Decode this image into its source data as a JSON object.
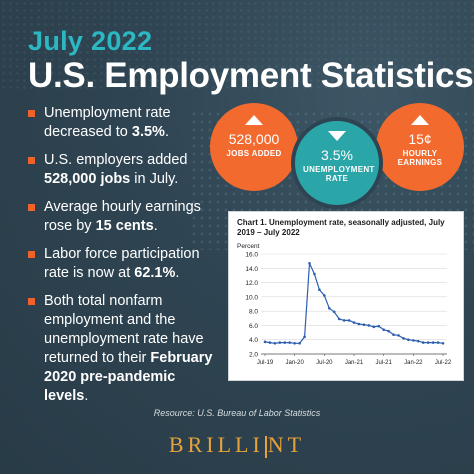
{
  "header": {
    "subtitle": "July 2022",
    "title": "U.S. Employment Statistics"
  },
  "bullets": [
    {
      "pre": "Unemployment rate decreased to ",
      "bold": "3.5%",
      "post": "."
    },
    {
      "pre": "U.S. employers added ",
      "bold": "528,000 jobs",
      "post": " in July."
    },
    {
      "pre": "Average hourly earnings rose by ",
      "bold": "15 cents",
      "post": "."
    },
    {
      "pre": "Labor force participation rate is now at ",
      "bold": "62.1%",
      "post": "."
    },
    {
      "pre": "Both total nonfarm employment and the unemployment rate have returned to their ",
      "bold": "February 2020 pre-pandemic levels",
      "post": "."
    }
  ],
  "stats": [
    {
      "value": "528,000",
      "label": "JOBS ADDED",
      "direction": "up",
      "color": "#f26a2e"
    },
    {
      "value": "3.5%",
      "label": "UNEMPLOYMENT RATE",
      "direction": "down",
      "color": "#2aa6a8"
    },
    {
      "value": "15¢",
      "label": "HOURLY EARNINGS",
      "direction": "up",
      "color": "#f26a2e"
    }
  ],
  "chart_data": {
    "type": "line",
    "title": "Chart 1. Unemployment rate, seasonally adjusted, July 2019 – July 2022",
    "ylabel": "Percent",
    "xlabel": "",
    "ylim": [
      2.0,
      16.0
    ],
    "yticks": [
      "16.0",
      "14.0",
      "12.0",
      "10.0",
      "8.0",
      "6.0",
      "4.0",
      "2.0"
    ],
    "xticks": [
      "Jul-19",
      "Jan-20",
      "Jul-20",
      "Jan-21",
      "Jul-21",
      "Jan-22",
      "Jul-22"
    ],
    "grid": true,
    "series": [
      {
        "color": "#2d5fb0",
        "values": [
          3.7,
          3.6,
          3.5,
          3.6,
          3.6,
          3.6,
          3.5,
          3.5,
          4.4,
          14.7,
          13.2,
          11.0,
          10.2,
          8.4,
          7.9,
          6.9,
          6.7,
          6.7,
          6.4,
          6.2,
          6.1,
          6.0,
          5.8,
          5.9,
          5.4,
          5.2,
          4.7,
          4.6,
          4.2,
          4.0,
          3.9,
          3.8,
          3.6,
          3.6,
          3.6,
          3.6,
          3.5
        ]
      }
    ]
  },
  "footer": {
    "source": "Resource: U.S. Bureau of Labor Statistics",
    "brand_left": "BRILLI",
    "brand_right": "NT"
  }
}
